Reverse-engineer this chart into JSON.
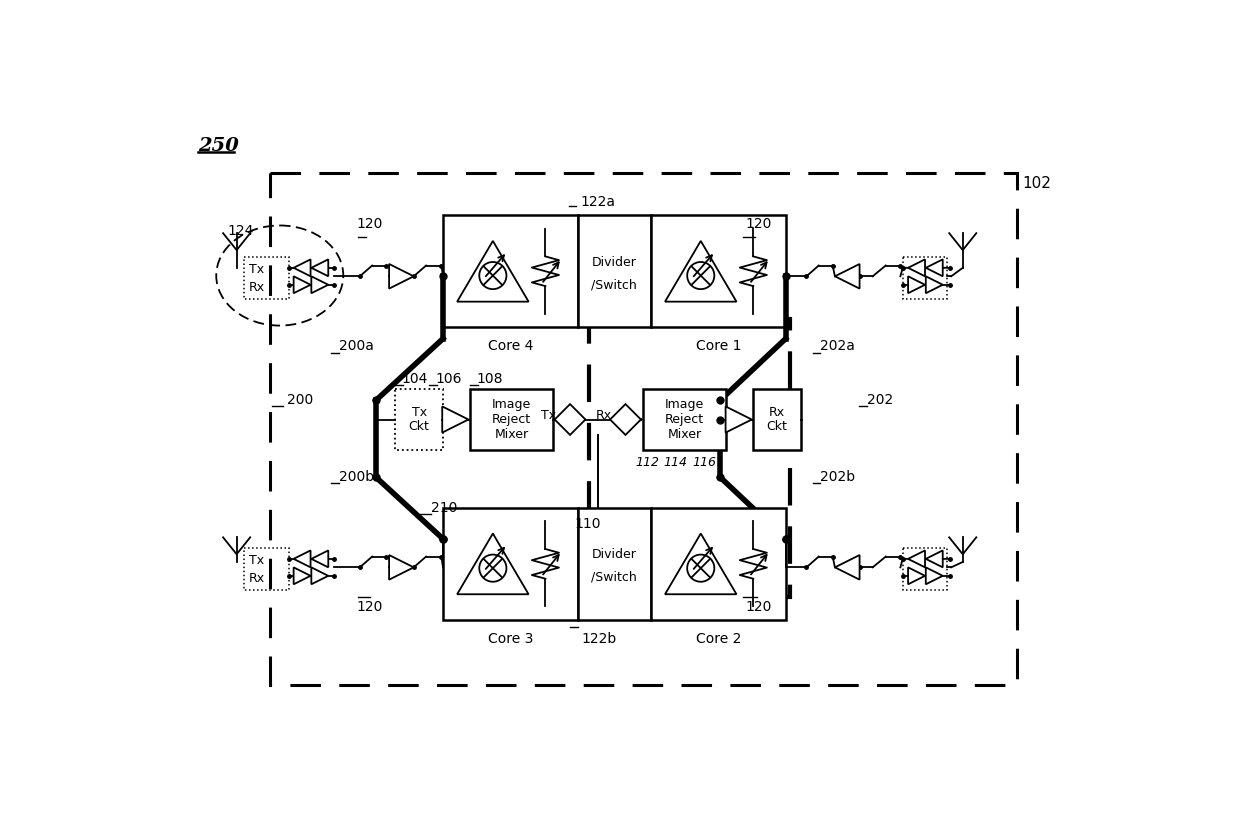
{
  "bg_color": "#ffffff",
  "title": "250",
  "label_102": "102",
  "label_124": "124",
  "label_120": "120",
  "label_122a": "122a",
  "label_122b": "122b",
  "label_200": "200",
  "label_200a": "200a",
  "label_200b": "200b",
  "label_202": "202",
  "label_202a": "202a",
  "label_202b": "202b",
  "label_104": "104",
  "label_106": "106",
  "label_108": "108",
  "label_110": "110",
  "label_112": "112",
  "label_114": "114",
  "label_116": "116",
  "label_210": "210",
  "core4_label": "Core 4",
  "core1_label": "Core 1",
  "core3_label": "Core 3",
  "core2_label": "Core 2",
  "divider_label": "Divider\n/Switch",
  "img_reject_label": "Image\nReject\nMixer",
  "tx_ckt_label": "Tx\nCkt",
  "rx_ckt_label": "Rx\nCkt",
  "tx_label": "Tx",
  "rx_label": "Rx"
}
